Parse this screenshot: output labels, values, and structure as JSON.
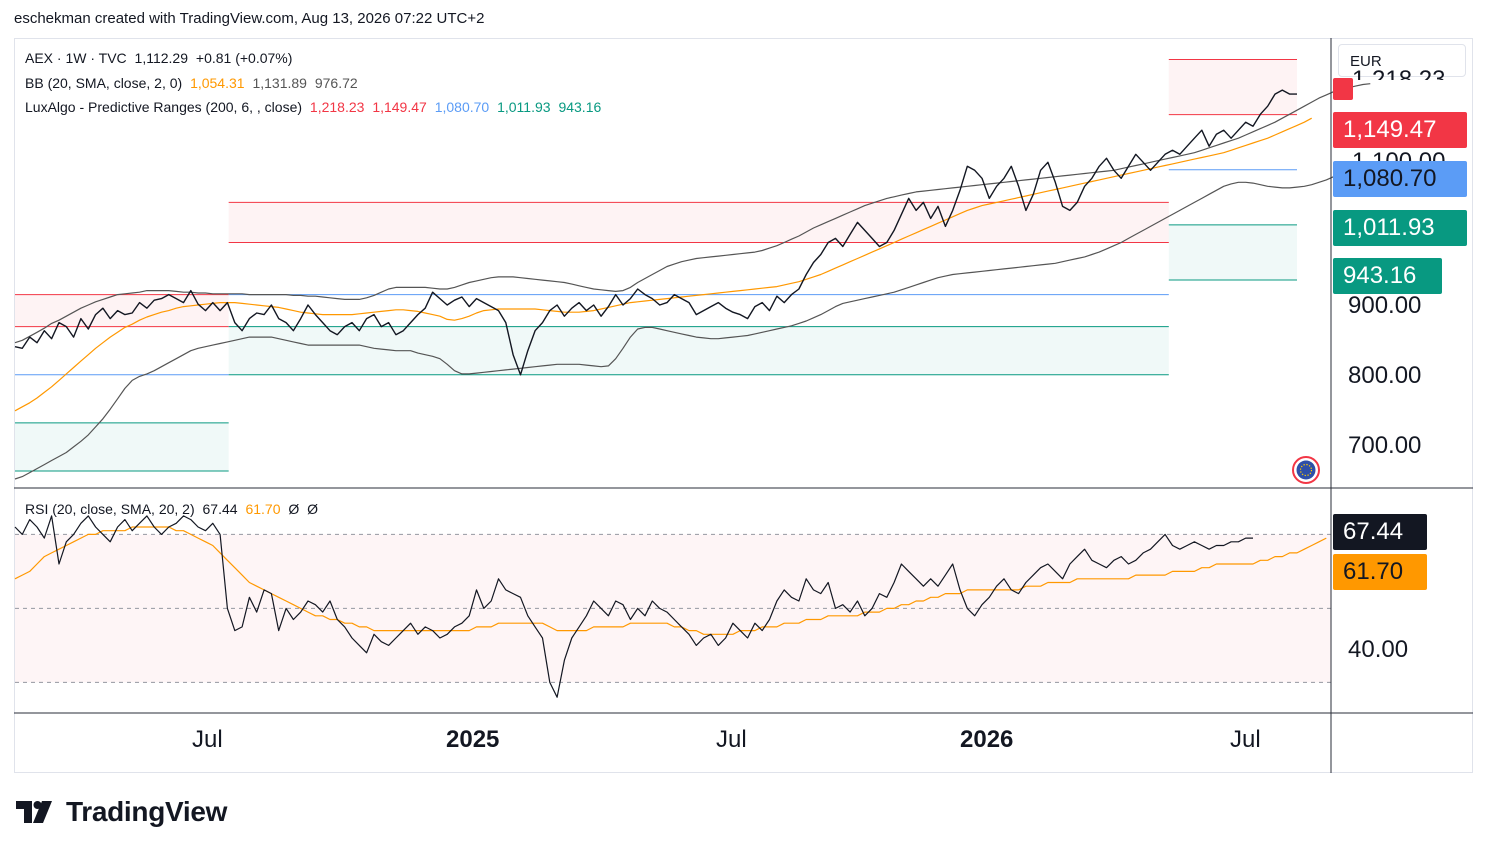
{
  "header": "eschekman created with TradingView.com, Aug 13, 2026 07:22 UTC+2",
  "currency": "EUR",
  "brand": "TradingView",
  "legend": {
    "symbol": {
      "text": "AEX · 1W · TVC",
      "price": "1,112.29",
      "change": "+0.81 (+0.07%)"
    },
    "bb": {
      "text": "BB (20, SMA, close, 2, 0)",
      "basis": "1,054.31",
      "upper": "1,131.89",
      "lower": "976.72"
    },
    "lux": {
      "text": "LuxAlgo - Predictive Ranges (200, 6, , close)",
      "r2": "1,218.23",
      "r1": "1,149.47",
      "avg": "1,080.70",
      "s1": "1,011.93",
      "s2": "943.16"
    },
    "rsi": {
      "text": "RSI (20, close, SMA, 20, 2)",
      "rsi": "67.44",
      "ma": "61.70",
      "u": "Ø",
      "l": "Ø"
    }
  },
  "price_axis": [
    "900.00",
    "800.00",
    "700.00"
  ],
  "price_partial": [
    "1,218.23",
    "1,100.00"
  ],
  "price_tags": [
    {
      "label": "1,149.47",
      "color": "#f23645"
    },
    {
      "label": "1,080.70",
      "color": "#5b9cf6"
    },
    {
      "label": "1,011.93",
      "color": "#089981"
    },
    {
      "label": "943.16",
      "color": "#089981"
    }
  ],
  "rsi_axis": [
    "40.00"
  ],
  "rsi_tags": [
    {
      "label": "67.44",
      "color": "#131722"
    },
    {
      "label": "61.70",
      "color": "#ff9800"
    }
  ],
  "time_axis": [
    {
      "label": "Jul",
      "major": false
    },
    {
      "label": "2025",
      "major": true
    },
    {
      "label": "Jul",
      "major": false
    },
    {
      "label": "2026",
      "major": true
    },
    {
      "label": "Jul",
      "major": false
    }
  ],
  "colors": {
    "price": "#131722",
    "bb_basis": "#ff9800",
    "bb_band": "#555555",
    "resistance": "#f23645",
    "average": "#5b9cf6",
    "support": "#089981"
  },
  "chart_data": {
    "type": "line",
    "interval": "1W",
    "x_range": [
      "2024-02",
      "2026-08"
    ],
    "y_range": [
      685,
      1245
    ],
    "price": [
      860,
      858,
      872,
      865,
      880,
      870,
      890,
      885,
      872,
      895,
      882,
      900,
      908,
      895,
      905,
      900,
      902,
      915,
      908,
      918,
      920,
      925,
      920,
      915,
      930,
      913,
      905,
      915,
      905,
      915,
      890,
      880,
      895,
      902,
      900,
      912,
      895,
      890,
      880,
      895,
      912,
      900,
      890,
      880,
      875,
      885,
      890,
      880,
      895,
      900,
      885,
      890,
      875,
      880,
      890,
      900,
      908,
      928,
      920,
      912,
      918,
      922,
      910,
      920,
      915,
      910,
      905,
      890,
      850,
      825,
      855,
      880,
      890,
      905,
      912,
      898,
      908,
      915,
      905,
      912,
      898,
      910,
      925,
      912,
      920,
      932,
      925,
      920,
      912,
      915,
      925,
      920,
      915,
      900,
      905,
      910,
      915,
      908,
      903,
      900,
      895,
      910,
      915,
      905,
      923,
      915,
      925,
      932,
      950,
      965,
      975,
      990,
      995,
      985,
      1000,
      1015,
      1005,
      995,
      985,
      990,
      1005,
      1025,
      1045,
      1030,
      1040,
      1020,
      1035,
      1010,
      1030,
      1055,
      1085,
      1080,
      1070,
      1045,
      1060,
      1070,
      1085,
      1060,
      1030,
      1050,
      1080,
      1090,
      1065,
      1035,
      1030,
      1040,
      1060,
      1070,
      1085,
      1095,
      1080,
      1070,
      1085,
      1100,
      1090,
      1080,
      1090,
      1100,
      1105,
      1100,
      1110,
      1120,
      1130,
      1110,
      1125,
      1130,
      1120,
      1130,
      1140,
      1135,
      1150,
      1160,
      1175,
      1180,
      1175,
      1175
    ],
    "bb_basis": [
      780,
      785,
      790,
      796,
      803,
      810,
      818,
      826,
      834,
      842,
      850,
      858,
      865,
      872,
      878,
      884,
      888,
      893,
      897,
      900,
      903,
      905,
      908,
      910,
      911,
      912,
      913,
      914,
      915,
      915,
      915,
      914,
      913,
      912,
      911,
      910,
      909,
      907,
      905,
      903,
      902,
      901,
      900,
      900,
      900,
      900,
      900,
      901,
      902,
      903,
      904,
      905,
      906,
      906,
      905,
      904,
      902,
      900,
      898,
      894,
      893,
      895,
      898,
      902,
      905,
      906,
      907,
      907,
      907,
      907,
      907,
      907,
      906,
      905,
      904,
      903,
      903,
      903,
      904,
      905,
      907,
      909,
      911,
      913,
      915,
      916,
      917,
      918,
      919,
      920,
      921,
      922,
      923,
      924,
      925,
      926,
      927,
      928,
      929,
      930,
      931,
      932,
      933,
      934,
      935,
      937,
      939,
      941,
      944,
      947,
      950,
      954,
      958,
      962,
      966,
      970,
      974,
      978,
      982,
      986,
      990,
      994,
      998,
      1002,
      1006,
      1010,
      1014,
      1018,
      1022,
      1026,
      1030,
      1033,
      1036,
      1038,
      1040,
      1042,
      1044,
      1046,
      1048,
      1050,
      1052,
      1054,
      1056,
      1058,
      1060,
      1062,
      1064,
      1066,
      1068,
      1070,
      1072,
      1074,
      1076,
      1078,
      1080,
      1082,
      1084,
      1086,
      1088,
      1090,
      1092,
      1094,
      1096,
      1098,
      1100,
      1102,
      1105,
      1108,
      1111,
      1114,
      1117,
      1120,
      1124,
      1128,
      1132,
      1136,
      1140,
      1145
    ],
    "bb_upper": [
      865,
      868,
      873,
      878,
      883,
      889,
      893,
      898,
      903,
      908,
      912,
      916,
      919,
      922,
      925,
      926,
      927,
      928,
      930,
      930,
      930,
      930,
      929,
      928,
      928,
      927,
      927,
      926,
      926,
      926,
      926,
      926,
      925,
      925,
      925,
      925,
      925,
      925,
      924,
      924,
      923,
      923,
      922,
      921,
      920,
      919,
      919,
      919,
      921,
      924,
      928,
      932,
      934,
      934,
      934,
      934,
      934,
      933,
      932,
      932,
      934,
      937,
      940,
      942,
      944,
      946,
      947,
      947,
      947,
      946,
      945,
      944,
      943,
      942,
      941,
      940,
      938,
      936,
      934,
      932,
      931,
      930,
      929,
      930,
      934,
      940,
      945,
      950,
      955,
      960,
      963,
      966,
      968,
      970,
      971,
      972,
      973,
      974,
      975,
      976,
      977,
      978,
      980,
      983,
      986,
      990,
      994,
      998,
      1003,
      1008,
      1012,
      1016,
      1020,
      1024,
      1028,
      1032,
      1036,
      1039,
      1042,
      1045,
      1047,
      1049,
      1051,
      1053,
      1054,
      1055,
      1056,
      1057,
      1058,
      1059,
      1060,
      1061,
      1062,
      1063,
      1064,
      1065,
      1066,
      1067,
      1068,
      1069,
      1070,
      1071,
      1072,
      1073,
      1074,
      1075,
      1076,
      1077,
      1078,
      1079,
      1080,
      1082,
      1084,
      1086,
      1088,
      1090,
      1092,
      1094,
      1096,
      1098,
      1100,
      1102,
      1105,
      1108,
      1111,
      1114,
      1117,
      1120,
      1124,
      1128,
      1132,
      1136,
      1140,
      1145,
      1150,
      1155,
      1160,
      1165,
      1170,
      1174,
      1178,
      1181,
      1183,
      1185,
      1187,
      1188
    ],
    "bb_lower": [
      695,
      698,
      703,
      708,
      713,
      718,
      723,
      728,
      735,
      742,
      750,
      760,
      770,
      782,
      795,
      808,
      818,
      823,
      826,
      830,
      835,
      840,
      845,
      850,
      855,
      858,
      860,
      862,
      864,
      866,
      868,
      870,
      872,
      872,
      872,
      872,
      870,
      868,
      866,
      864,
      862,
      862,
      862,
      862,
      862,
      862,
      862,
      862,
      860,
      858,
      857,
      856,
      855,
      855,
      855,
      852,
      850,
      848,
      845,
      838,
      830,
      826,
      826,
      827,
      828,
      829,
      830,
      831,
      832,
      833,
      834,
      835,
      836,
      837,
      838,
      838,
      838,
      838,
      837,
      836,
      835,
      836,
      845,
      858,
      872,
      882,
      884,
      884,
      882,
      880,
      878,
      876,
      874,
      872,
      871,
      870,
      870,
      871,
      872,
      873,
      874,
      876,
      878,
      880,
      882,
      884,
      886,
      889,
      892,
      896,
      900,
      905,
      910,
      914,
      916,
      918,
      920,
      922,
      924,
      926,
      928,
      931,
      934,
      937,
      940,
      943,
      946,
      948,
      950,
      951,
      952,
      953,
      954,
      955,
      956,
      957,
      958,
      959,
      960,
      961,
      962,
      963,
      964,
      966,
      968,
      970,
      972,
      975,
      978,
      982,
      986,
      990,
      995,
      1000,
      1005,
      1010,
      1015,
      1020,
      1025,
      1030,
      1035,
      1040,
      1045,
      1050,
      1055,
      1060,
      1063,
      1065,
      1065,
      1064,
      1062,
      1060,
      1059,
      1058,
      1058,
      1059,
      1060,
      1062,
      1065,
      1068,
      1072,
      1078,
      1085
    ],
    "predictive_ranges": [
      {
        "from": "2024-02",
        "to": "2024-07",
        "r2": 925,
        "r1": 885,
        "avg": 825,
        "s1": 765,
        "s2": 705
      },
      {
        "from": "2024-07",
        "to": "2026-05",
        "r2": 1040,
        "r1": 990,
        "avg": 925,
        "s1": 885,
        "s2": 825
      },
      {
        "from": "2026-05",
        "to": "2026-08",
        "r2": 1218.23,
        "r1": 1149.47,
        "avg": 1080.7,
        "s1": 1011.93,
        "s2": 943.16
      }
    ],
    "rsi": [
      72,
      70,
      74,
      72,
      69,
      75,
      62,
      68,
      70,
      73,
      75,
      72,
      70,
      68,
      72,
      74,
      71,
      73,
      75,
      72,
      70,
      72,
      73,
      75,
      74,
      72,
      71,
      73,
      70,
      50,
      44,
      45,
      53,
      49,
      55,
      54,
      44,
      50,
      47,
      49,
      52,
      51,
      49,
      52,
      47,
      45,
      42,
      40,
      38,
      43,
      41,
      40,
      42,
      44,
      46,
      43,
      45,
      44,
      42,
      43,
      45,
      46,
      48,
      55,
      50,
      52,
      58,
      55,
      54,
      53,
      48,
      45,
      42,
      30,
      26,
      36,
      42,
      45,
      48,
      52,
      50,
      48,
      52,
      51,
      47,
      50,
      48,
      52,
      50,
      49,
      47,
      45,
      43,
      40,
      42,
      43,
      40,
      42,
      46,
      44,
      42,
      46,
      44,
      47,
      52,
      55,
      53,
      52,
      58,
      55,
      54,
      57,
      50,
      51,
      49,
      52,
      48,
      50,
      54,
      53,
      57,
      62,
      60,
      58,
      56,
      58,
      56,
      59,
      62,
      55,
      50,
      48,
      51,
      53,
      56,
      58,
      55,
      54,
      57,
      59,
      61,
      62,
      60,
      58,
      62,
      64,
      66,
      63,
      62,
      61,
      63,
      64,
      62,
      63,
      65,
      66,
      68,
      70,
      67,
      66,
      67,
      68,
      67,
      66,
      67,
      67,
      68,
      68,
      69,
      69
    ],
    "rsi_ma": [
      58,
      59,
      60,
      62,
      64,
      65,
      66,
      67,
      68,
      69,
      70,
      70,
      71,
      71,
      71,
      71,
      72,
      72,
      72,
      72,
      72,
      72,
      71,
      71,
      70,
      69,
      68,
      67,
      65,
      63,
      61,
      59,
      57,
      56,
      55,
      54,
      53,
      52,
      51,
      50,
      49,
      48,
      48,
      47,
      47,
      46,
      46,
      45,
      45,
      44,
      44,
      44,
      44,
      44,
      44,
      44,
      44,
      44,
      44,
      44,
      44,
      44,
      44,
      45,
      45,
      45,
      46,
      46,
      46,
      46,
      46,
      46,
      46,
      45,
      44,
      44,
      44,
      44,
      44,
      45,
      45,
      45,
      45,
      45,
      46,
      46,
      46,
      46,
      46,
      46,
      45,
      45,
      44,
      44,
      43,
      43,
      43,
      43,
      43,
      44,
      44,
      44,
      45,
      45,
      45,
      46,
      46,
      46,
      47,
      47,
      47,
      48,
      48,
      48,
      48,
      48,
      49,
      49,
      49,
      50,
      50,
      51,
      51,
      52,
      52,
      53,
      53,
      54,
      54,
      54,
      55,
      55,
      55,
      55,
      55,
      55,
      55,
      55,
      56,
      56,
      56,
      57,
      57,
      57,
      57,
      58,
      58,
      58,
      58,
      58,
      58,
      58,
      58,
      59,
      59,
      59,
      59,
      59,
      60,
      60,
      60,
      60,
      61,
      61,
      62,
      62,
      62,
      62,
      62,
      62,
      63,
      63,
      64,
      64,
      65,
      65,
      66,
      67,
      68,
      69
    ],
    "rsi_y_range": [
      22,
      82
    ],
    "rsi_band": [
      30,
      70
    ]
  }
}
